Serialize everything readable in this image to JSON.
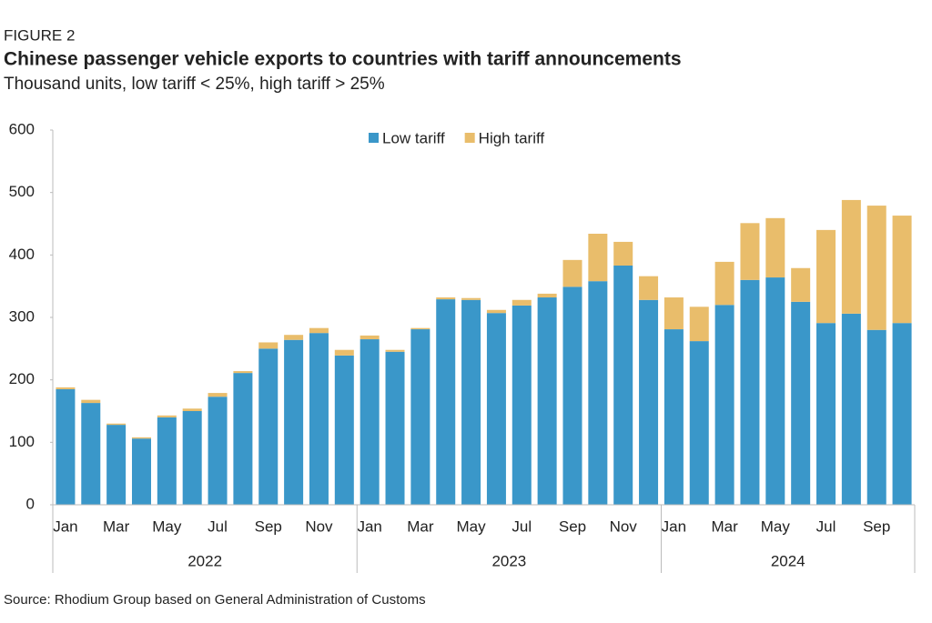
{
  "chart_data": {
    "type": "stacked-bar",
    "label": "FIGURE 2",
    "title": "Chinese passenger vehicle exports to countries with tariff announcements",
    "subtitle": "Thousand units, low tariff < 25%, high tariff > 25%",
    "source": "Source: Rhodium Group based on General Administration of Customs",
    "categories": [
      "Jan",
      null,
      "Mar",
      null,
      "May",
      null,
      "Jul",
      null,
      "Sep",
      null,
      "Nov",
      null,
      "Jan",
      null,
      "Mar",
      null,
      "May",
      null,
      "Jul",
      null,
      "Sep",
      null,
      "Nov",
      null,
      "Jan",
      null,
      "Mar",
      null,
      "May",
      null,
      "Jul",
      null,
      "Sep",
      null
    ],
    "groups": [
      {
        "label": "2022",
        "size": 12
      },
      {
        "label": "2023",
        "size": 12
      },
      {
        "label": "2024",
        "size": 10
      }
    ],
    "series": [
      {
        "name": "Low tariff",
        "color": "#3a97c9",
        "values": [
          185,
          163,
          128,
          106,
          140,
          150,
          173,
          211,
          250,
          264,
          275,
          239,
          265,
          245,
          281,
          329,
          328,
          307,
          319,
          332,
          349,
          358,
          383,
          328,
          281,
          262,
          320,
          360,
          364,
          325,
          291,
          306,
          280,
          291
        ]
      },
      {
        "name": "High tariff",
        "color": "#e9bd6b",
        "values": [
          3,
          5,
          2,
          2,
          3,
          4,
          6,
          3,
          10,
          8,
          8,
          9,
          6,
          3,
          2,
          3,
          3,
          5,
          9,
          6,
          43,
          76,
          38,
          38,
          51,
          55,
          69,
          91,
          95,
          54,
          149,
          182,
          199,
          172
        ]
      }
    ],
    "ylim": [
      0,
      600
    ],
    "yticks": [
      0,
      100,
      200,
      300,
      400,
      500,
      600
    ],
    "legend": "top"
  }
}
